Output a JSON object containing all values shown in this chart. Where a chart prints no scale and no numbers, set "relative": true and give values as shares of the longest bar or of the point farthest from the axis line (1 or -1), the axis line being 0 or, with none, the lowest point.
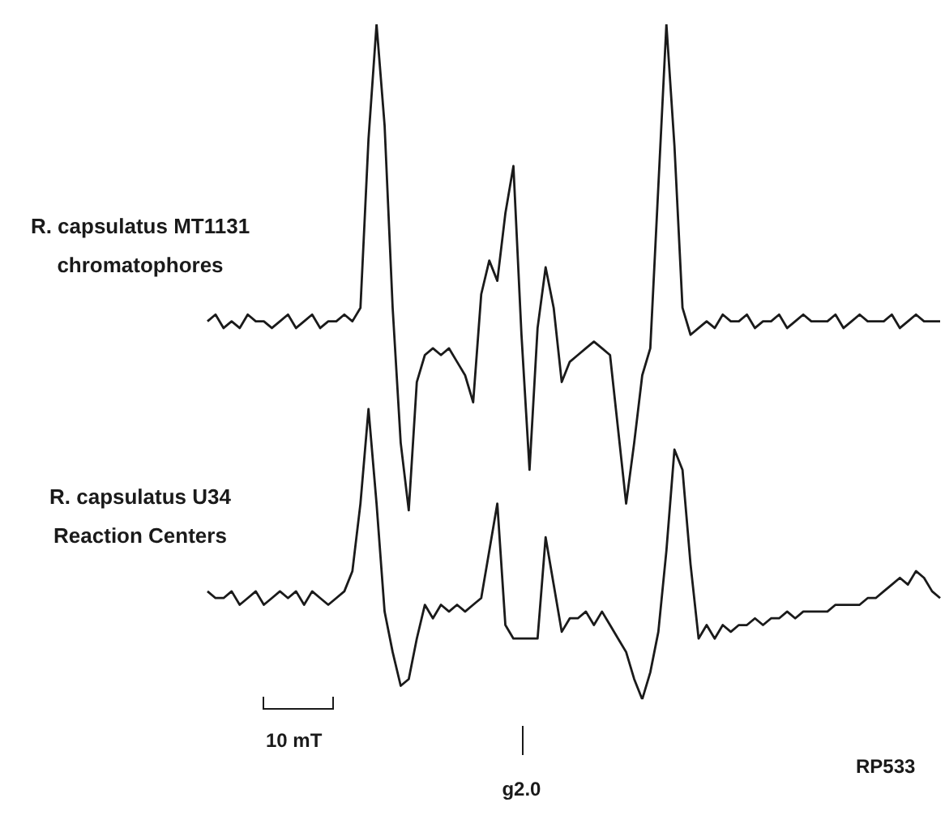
{
  "chart_data": {
    "type": "line",
    "relative": true,
    "legend": false,
    "grid": false,
    "marker": "none",
    "line_style": "solid",
    "categories": [
      null,
      null,
      null,
      null,
      null,
      null,
      null,
      null,
      null,
      null,
      null,
      null,
      null,
      null,
      null,
      null,
      null,
      null,
      null,
      null,
      null,
      null,
      null,
      null,
      null,
      null,
      null,
      null,
      null,
      null,
      null,
      null,
      null,
      null,
      null,
      null,
      null,
      null,
      null,
      null,
      null,
      null,
      null,
      null,
      null,
      null,
      null,
      null,
      null,
      null,
      null,
      null,
      null,
      null,
      null,
      null,
      null,
      null,
      null,
      null,
      null,
      null,
      null,
      null,
      null,
      null,
      null,
      null,
      null,
      null,
      null,
      null,
      null,
      null,
      null,
      null,
      null,
      null,
      null,
      null,
      null,
      null,
      null,
      null,
      null,
      null,
      null,
      null,
      null,
      null,
      null,
      null
    ],
    "series": [
      {
        "name": "R. capsulatus MT1131 chromatophores",
        "color": "#1a1a1a",
        "values": [
          0.56,
          0.57,
          0.55,
          0.56,
          0.55,
          0.57,
          0.56,
          0.56,
          0.55,
          0.56,
          0.57,
          0.55,
          0.56,
          0.57,
          0.55,
          0.56,
          0.56,
          0.57,
          0.56,
          0.58,
          0.83,
          1,
          0.85,
          0.58,
          0.38,
          0.28,
          0.47,
          0.51,
          0.52,
          0.51,
          0.52,
          0.5,
          0.48,
          0.44,
          0.6,
          0.65,
          0.62,
          0.72,
          0.79,
          0.54,
          0.34,
          0.55,
          0.64,
          0.58,
          0.47,
          0.5,
          0.51,
          0.52,
          0.53,
          0.52,
          0.51,
          0.4,
          0.29,
          0.38,
          0.48,
          0.52,
          0.76,
          1,
          0.82,
          0.58,
          0.54,
          0.55,
          0.56,
          0.55,
          0.57,
          0.56,
          0.56,
          0.57,
          0.55,
          0.56,
          0.56,
          0.57,
          0.55,
          0.56,
          0.57,
          0.56,
          0.56,
          0.56,
          0.57,
          0.55,
          0.56,
          0.57,
          0.56,
          0.56,
          0.56,
          0.57,
          0.55,
          0.56,
          0.57,
          0.56,
          0.56,
          0.56
        ]
      },
      {
        "name": "R. capsulatus U34 Reaction Centers",
        "color": "#1a1a1a",
        "values": [
          0.16,
          0.15,
          0.15,
          0.16,
          0.14,
          0.15,
          0.16,
          0.14,
          0.15,
          0.16,
          0.15,
          0.16,
          0.14,
          0.16,
          0.15,
          0.14,
          0.15,
          0.16,
          0.19,
          0.29,
          0.43,
          0.29,
          0.13,
          0.07,
          0.02,
          0.03,
          0.09,
          0.14,
          0.12,
          0.14,
          0.13,
          0.14,
          0.13,
          0.14,
          0.15,
          0.22,
          0.29,
          0.11,
          0.09,
          0.09,
          0.09,
          0.09,
          0.24,
          0.17,
          0.1,
          0.12,
          0.12,
          0.13,
          0.11,
          0.13,
          0.11,
          0.09,
          0.07,
          0.03,
          0,
          0.04,
          0.1,
          0.22,
          0.37,
          0.34,
          0.2,
          0.09,
          0.11,
          0.09,
          0.11,
          0.1,
          0.11,
          0.11,
          0.12,
          0.11,
          0.12,
          0.12,
          0.13,
          0.12,
          0.13,
          0.13,
          0.13,
          0.13,
          0.14,
          0.14,
          0.14,
          0.14,
          0.15,
          0.15,
          0.16,
          0.17,
          0.18,
          0.17,
          0.19,
          0.18,
          0.16,
          0.15
        ]
      }
    ],
    "annotations": [
      "10 mT",
      "g2.0",
      "RP533"
    ]
  }
}
